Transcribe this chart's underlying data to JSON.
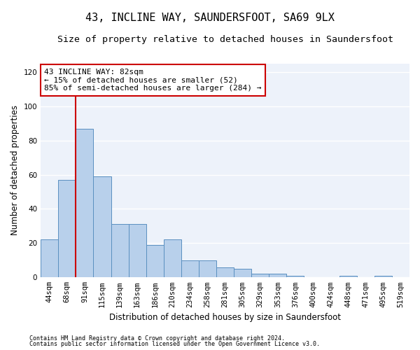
{
  "title": "43, INCLINE WAY, SAUNDERSFOOT, SA69 9LX",
  "subtitle": "Size of property relative to detached houses in Saundersfoot",
  "xlabel": "Distribution of detached houses by size in Saundersfoot",
  "ylabel": "Number of detached properties",
  "categories": [
    "44sqm",
    "68sqm",
    "91sqm",
    "115sqm",
    "139sqm",
    "163sqm",
    "186sqm",
    "210sqm",
    "234sqm",
    "258sqm",
    "281sqm",
    "305sqm",
    "329sqm",
    "353sqm",
    "376sqm",
    "400sqm",
    "424sqm",
    "448sqm",
    "471sqm",
    "495sqm",
    "519sqm"
  ],
  "values": [
    22,
    57,
    87,
    59,
    31,
    31,
    19,
    22,
    10,
    10,
    6,
    5,
    2,
    2,
    1,
    0,
    0,
    1,
    0,
    1,
    0
  ],
  "bar_color": "#b8d0eb",
  "bar_edge_color": "#5a8fc0",
  "background_color": "#edf2fa",
  "grid_color": "#ffffff",
  "redline_color": "#cc0000",
  "annotation_text": "43 INCLINE WAY: 82sqm\n← 15% of detached houses are smaller (52)\n85% of semi-detached houses are larger (284) →",
  "annotation_box_color": "#ffffff",
  "annotation_box_edgecolor": "#cc0000",
  "ylim": [
    0,
    125
  ],
  "yticks": [
    0,
    20,
    40,
    60,
    80,
    100,
    120
  ],
  "footer1": "Contains HM Land Registry data © Crown copyright and database right 2024.",
  "footer2": "Contains public sector information licensed under the Open Government Licence v3.0.",
  "title_fontsize": 11,
  "subtitle_fontsize": 9.5,
  "axis_label_fontsize": 8.5,
  "tick_fontsize": 7.5,
  "annotation_fontsize": 8,
  "footer_fontsize": 6
}
